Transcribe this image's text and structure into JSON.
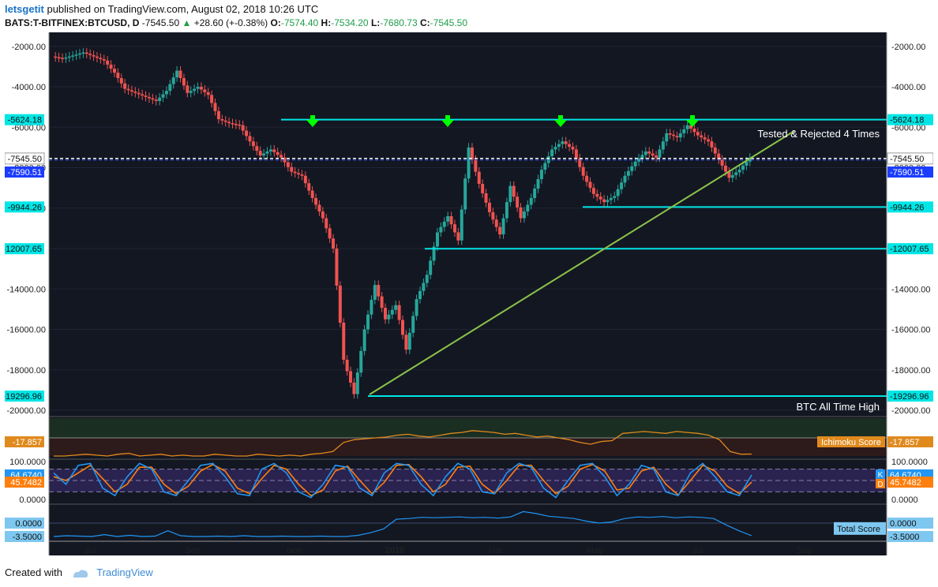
{
  "header": {
    "user": "letsgetit",
    "published": "published on TradingView.com, August 02, 2018 10:26 UTC",
    "symbol": "BATS:T-BITFINEX:BTCUSD, D",
    "last": "-7545.50",
    "change": "+28.60 (+-0.38%)",
    "o_label": "O:",
    "o": "-7574.40",
    "h_label": "H:",
    "h": "-7534.20",
    "l_label": "L:",
    "l": "-7680.73",
    "c_label": "C:",
    "c": "-7545.50"
  },
  "footer": {
    "created_with": "Created with",
    "brand": "TradingView"
  },
  "colors": {
    "background": "#131722",
    "up": "#26a69a",
    "down": "#ef5350",
    "level": "#00e5e5",
    "trend": "#8bc34a",
    "arrow": "#00ff00",
    "ichimoku": "#e08a1e",
    "stoch_k": "#2196f3",
    "stoch_d": "#ff7f0e",
    "total": "#2196f3"
  },
  "chart_data": [
    {
      "type": "candlestick",
      "title": "BATS:T-BITFINEX:BTCUSD, D",
      "x_ticks": [
        "Jul",
        "Sep",
        "Nov",
        "2018",
        "Mar",
        "May",
        "Jul",
        "Sep"
      ],
      "y_ticks": [
        "-2000.00",
        "-4000.00",
        "-6000.00",
        "-8000.00",
        "-10000.00",
        "-14000.00",
        "-16000.00",
        "-18000.00",
        "-20000.00"
      ],
      "ylim": [
        -20000,
        -1500
      ],
      "current_price": -7545.5,
      "current_price_label": "-7545.50",
      "marker_label": "-7590.51",
      "marker_value": -7590.51,
      "levels": [
        {
          "value": -5624.18,
          "label": "-5624.18"
        },
        {
          "value": -9944.26,
          "label": "-9944.26"
        },
        {
          "value": -12007.65,
          "label": "-12007.65"
        },
        {
          "value": -19296.96,
          "label": "-19296.96"
        }
      ],
      "annotations": [
        "Tested & Rejected 4 Times",
        "BTC All Time High"
      ],
      "arrow_count": 4,
      "series": [
        {
          "name": "BTCUSD (inverted close, sampled)",
          "values": [
            -2500,
            -2600,
            -2450,
            -2300,
            -2500,
            -2700,
            -3300,
            -4100,
            -4300,
            -4500,
            -4700,
            -4200,
            -3200,
            -4300,
            -4000,
            -4400,
            -5600,
            -5800,
            -5900,
            -6700,
            -7400,
            -7100,
            -7500,
            -8200,
            -8400,
            -9500,
            -10500,
            -12000,
            -17500,
            -19200,
            -16000,
            -13800,
            -15500,
            -14800,
            -17000,
            -14500,
            -13300,
            -11200,
            -10400,
            -11600,
            -7000,
            -8800,
            -10200,
            -11300,
            -8900,
            -10500,
            -9500,
            -8100,
            -7100,
            -6700,
            -7100,
            -8400,
            -9300,
            -9700,
            -9400,
            -8400,
            -7700,
            -7200,
            -7500,
            -6300,
            -6500,
            -5900,
            -6400,
            -6700,
            -7600,
            -8500,
            -8100,
            -7500
          ],
          "x_start": "2017-06-15",
          "x_end": "2018-08-02"
        }
      ]
    },
    {
      "type": "line",
      "title": "Ichimoku Score",
      "current": "-17.857",
      "series": [
        {
          "name": "Ichimoku Score",
          "values": [
            -20,
            -20,
            -19,
            -18,
            -19,
            -20,
            -18,
            -17,
            -20,
            -19,
            -18,
            -20,
            -19,
            -20,
            -20,
            -18,
            -19,
            -20,
            -20,
            -18,
            -19,
            -20,
            -19,
            -20,
            -18,
            -17,
            -15,
            -5,
            -2,
            -1,
            0,
            1,
            3,
            4,
            2,
            1,
            3,
            5,
            6,
            8,
            7,
            6,
            4,
            5,
            3,
            1,
            2,
            0,
            -2,
            -5,
            -7,
            -4,
            -3,
            5,
            6,
            7,
            6,
            5,
            7,
            6,
            5,
            3,
            -2,
            -15,
            -18,
            -17.857
          ]
        }
      ]
    },
    {
      "type": "line",
      "title": "Stochastic",
      "current_k": "64.6740",
      "current_d": "45.7482",
      "y_ticks": [
        "100.0000",
        "0.0000"
      ],
      "legend": [
        "K",
        "D"
      ],
      "series": [
        {
          "name": "K",
          "values": [
            70,
            40,
            90,
            95,
            30,
            10,
            60,
            95,
            80,
            20,
            10,
            50,
            90,
            95,
            60,
            15,
            10,
            80,
            95,
            70,
            20,
            5,
            40,
            90,
            85,
            30,
            10,
            70,
            95,
            90,
            40,
            10,
            60,
            95,
            80,
            20,
            15,
            70,
            95,
            85,
            30,
            5,
            50,
            90,
            95,
            60,
            10,
            40,
            90,
            80,
            20,
            10,
            70,
            95,
            60,
            20,
            10,
            64.674
          ]
        },
        {
          "name": "D",
          "values": [
            60,
            50,
            70,
            90,
            55,
            20,
            40,
            85,
            85,
            40,
            15,
            35,
            75,
            92,
            75,
            30,
            15,
            55,
            90,
            80,
            40,
            10,
            25,
            75,
            88,
            50,
            15,
            45,
            90,
            92,
            60,
            20,
            40,
            85,
            88,
            40,
            15,
            50,
            90,
            90,
            50,
            15,
            35,
            80,
            92,
            75,
            25,
            30,
            75,
            85,
            40,
            12,
            50,
            90,
            75,
            35,
            15,
            45.7482
          ]
        }
      ]
    },
    {
      "type": "line",
      "title": "Total Score",
      "y_ticks": [
        "0.0000",
        "-3.5000"
      ],
      "series": [
        {
          "name": "Total Score",
          "values": [
            -3.5,
            -3.3,
            -3.4,
            -3.5,
            -3,
            -3.5,
            -3.2,
            -3.5,
            -3.4,
            -2,
            -3.3,
            -3.5,
            -3.5,
            -3.4,
            -3.5,
            -3.3,
            -3.5,
            -3.5,
            -3.4,
            -3.5,
            -3.5,
            -3.4,
            -3.5,
            -3.5,
            -3.2,
            -2.5,
            -1.5,
            1,
            1.2,
            1.5,
            1.4,
            1.5,
            1.6,
            1.4,
            1.5,
            1.3,
            1.6,
            3,
            2.5,
            1.8,
            1.5,
            1.2,
            0.5,
            0,
            0.3,
            1.2,
            1.6,
            1.5,
            1.7,
            1.4,
            1.6,
            1.5,
            1.2,
            -0.5,
            -2,
            -3.3
          ]
        }
      ]
    }
  ]
}
